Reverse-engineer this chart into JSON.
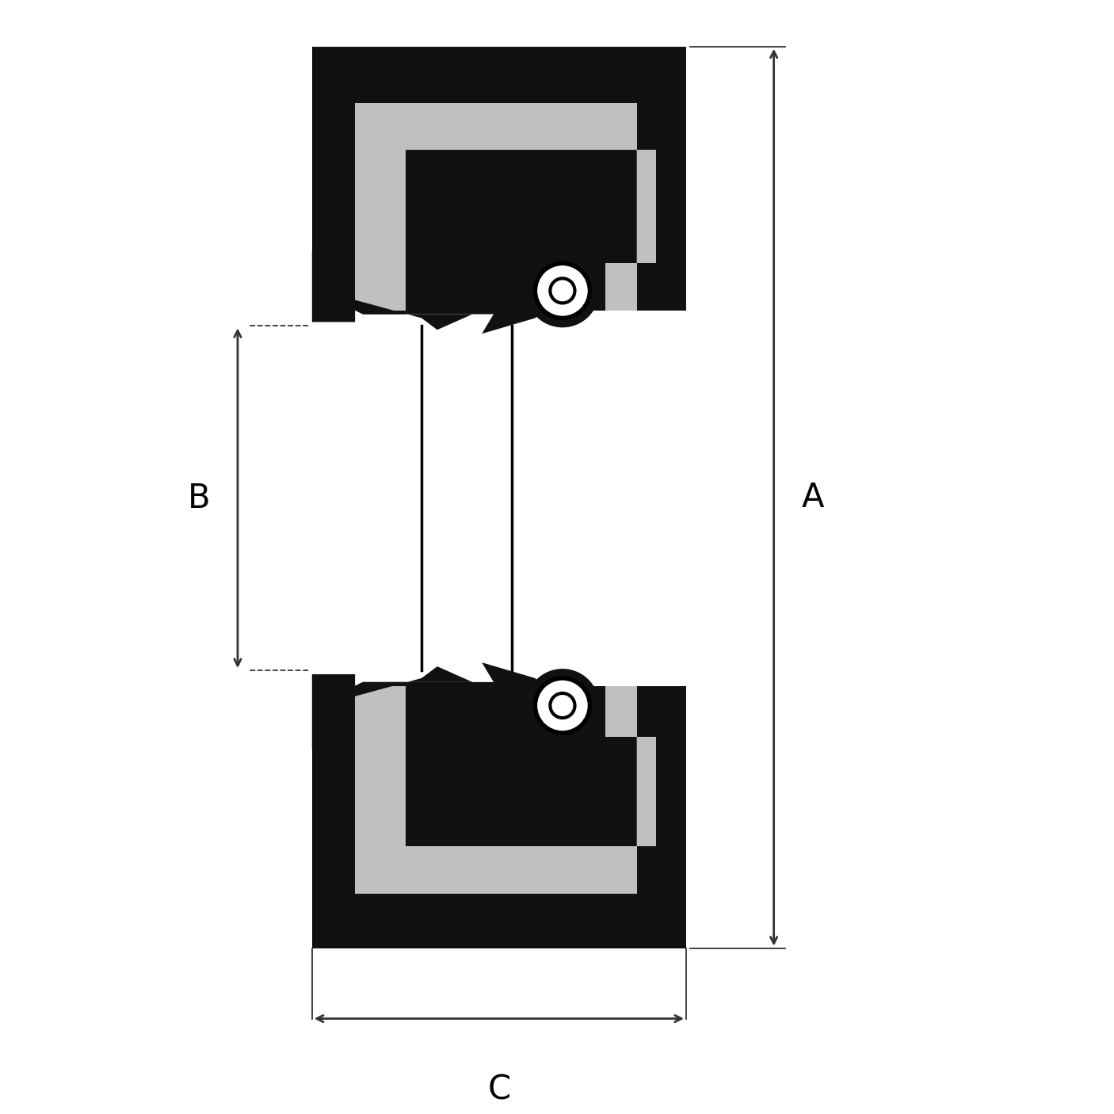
{
  "background_color": "#ffffff",
  "line_color": "#000000",
  "fill_black": "#111111",
  "fill_gray": "#c0c0c0",
  "fill_white": "#ffffff",
  "dim_color": "#333333",
  "fig_size": [
    14.06,
    14.06
  ],
  "dpi": 100,
  "label_A": "A",
  "label_B": "B",
  "label_C": "C",
  "label_fontsize": 30,
  "lw_thick": 1.5
}
